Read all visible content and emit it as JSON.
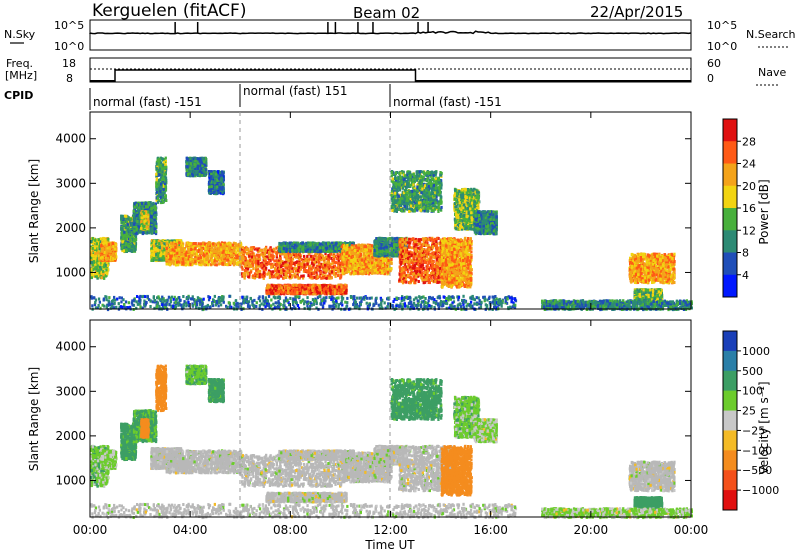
{
  "header": {
    "station": "Kerguelen (fitACF)",
    "beam": "Beam 02",
    "date": "22/Apr/2015"
  },
  "noise_panel": {
    "left_label": "N.Sky",
    "right_label": "N.Search",
    "left_ticks": [
      "10^5",
      "10^0"
    ],
    "right_ticks": [
      "10^5",
      "10^0"
    ]
  },
  "freq_panel": {
    "left_label_1": "Freq.",
    "left_label_2": "[MHz]",
    "right_label": "Nave",
    "left_ticks": [
      "18",
      "8"
    ],
    "right_ticks": [
      "60",
      "0"
    ],
    "freq_steps": [
      {
        "start_hr": 0.0,
        "end_hr": 1.0,
        "value_mhz": 8.5
      },
      {
        "start_hr": 1.0,
        "end_hr": 13.0,
        "value_mhz": 13.0
      },
      {
        "start_hr": 13.0,
        "end_hr": 24.0,
        "value_mhz": 8.5
      }
    ],
    "nave_level": 30
  },
  "cpid": {
    "label": "CPID",
    "segments": [
      {
        "start_hr": 0,
        "text": "normal (fast) -151"
      },
      {
        "start_hr": 6,
        "text": "normal (fast) 151"
      },
      {
        "start_hr": 12,
        "text": "normal (fast) -151"
      }
    ]
  },
  "power_panel": {
    "ylabel": "Slant Range [km]",
    "yticks": [
      "4000",
      "3000",
      "2000",
      "1000"
    ],
    "colorbar_label": "Power [dB]",
    "colorbar_ticks": [
      "28",
      "24",
      "20",
      "16",
      "12",
      "8",
      "4"
    ],
    "colors": [
      "#0018ff",
      "#1f4eb8",
      "#2c8a74",
      "#48b03c",
      "#f2d411",
      "#f4a31a",
      "#ff5a16",
      "#e01010"
    ]
  },
  "velocity_panel": {
    "ylabel": "Slant Range [km]",
    "yticks": [
      "4000",
      "3000",
      "2000",
      "1000"
    ],
    "colorbar_label": "Velocity [m s⁻¹]",
    "colorbar_ticks": [
      "1000",
      "500",
      "100",
      "25",
      "−25",
      "−100",
      "−500",
      "−1000"
    ],
    "colors": [
      "#1a3fb8",
      "#2a7fa8",
      "#3c9e64",
      "#6ccc2c",
      "#c8c8c8",
      "#f4bb26",
      "#f48c1e",
      "#f4501a",
      "#e00f0f"
    ],
    "ground_scatter": "#b8b8b8"
  },
  "x_axis": {
    "label": "Time UT",
    "ticks": [
      "00:00",
      "04:00",
      "08:00",
      "12:00",
      "16:00",
      "20:00",
      "00:00"
    ]
  },
  "chart_data": {
    "type": "heatmap",
    "title": "Kerguelen (fitACF)  Beam 02  22/Apr/2015",
    "xlabel": "Time UT",
    "ylabel": "Slant Range [km]",
    "xlim_hours": [
      0,
      24
    ],
    "ylim_km": [
      180,
      4600
    ],
    "power_range_db": [
      0,
      30
    ],
    "velocity_range_ms": [
      -1000,
      1000
    ],
    "regions": [
      {
        "t0": 0.0,
        "t1": 0.7,
        "r0": 900,
        "r1": 1800,
        "power_db": 16,
        "velocity": 60
      },
      {
        "t0": 0.4,
        "t1": 1.0,
        "r0": 1300,
        "r1": 1700,
        "power_db": 22,
        "velocity": 40
      },
      {
        "t0": 1.2,
        "t1": 1.8,
        "r0": 1500,
        "r1": 2300,
        "power_db": 12,
        "velocity": 150
      },
      {
        "t0": 1.7,
        "t1": 2.6,
        "r0": 1900,
        "r1": 2600,
        "power_db": 10,
        "velocity": 120
      },
      {
        "t0": 2.6,
        "t1": 3.0,
        "r0": 2600,
        "r1": 3600,
        "power_db": 12,
        "velocity": -300
      },
      {
        "t0": 2.0,
        "t1": 2.3,
        "r0": 2000,
        "r1": 2400,
        "power_db": 18,
        "velocity": -250
      },
      {
        "t0": 3.8,
        "t1": 4.6,
        "r0": 3200,
        "r1": 3600,
        "power_db": 10,
        "velocity": 80
      },
      {
        "t0": 4.7,
        "t1": 5.3,
        "r0": 2800,
        "r1": 3300,
        "power_db": 8,
        "velocity": 150
      },
      {
        "t0": 2.4,
        "t1": 3.6,
        "r0": 1300,
        "r1": 1750,
        "power_db": 16,
        "velocity": 0
      },
      {
        "t0": 3.0,
        "t1": 6.0,
        "r0": 1200,
        "r1": 1700,
        "power_db": 22,
        "velocity": 0
      },
      {
        "t0": 6.0,
        "t1": 10.0,
        "r0": 900,
        "r1": 1600,
        "power_db": 25,
        "velocity": 0
      },
      {
        "t0": 7.5,
        "t1": 10.5,
        "r0": 1500,
        "r1": 1700,
        "power_db": 10,
        "velocity": 0
      },
      {
        "t0": 10.0,
        "t1": 12.0,
        "r0": 1000,
        "r1": 1650,
        "power_db": 22,
        "velocity": 0
      },
      {
        "t0": 11.3,
        "t1": 12.6,
        "r0": 1400,
        "r1": 1800,
        "power_db": 10,
        "velocity": 0
      },
      {
        "t0": 7.0,
        "t1": 10.2,
        "r0": 550,
        "r1": 750,
        "power_db": 26,
        "velocity": 0
      },
      {
        "t0": 12.3,
        "t1": 14.5,
        "r0": 800,
        "r1": 1800,
        "power_db": 26,
        "velocity": 0
      },
      {
        "t0": 14.0,
        "t1": 15.2,
        "r0": 700,
        "r1": 1800,
        "power_db": 22,
        "velocity": -250
      },
      {
        "t0": 14.5,
        "t1": 15.5,
        "r0": 2000,
        "r1": 2900,
        "power_db": 14,
        "velocity": 60
      },
      {
        "t0": 15.3,
        "t1": 16.2,
        "r0": 1900,
        "r1": 2400,
        "power_db": 10,
        "velocity": 30
      },
      {
        "t0": 12.0,
        "t1": 14.0,
        "r0": 2400,
        "r1": 3300,
        "power_db": 12,
        "velocity": 150
      },
      {
        "t0": 21.5,
        "t1": 23.3,
        "r0": 800,
        "r1": 1450,
        "power_db": 22,
        "velocity": 0
      },
      {
        "t0": 21.7,
        "t1": 22.8,
        "r0": 400,
        "r1": 650,
        "power_db": 14,
        "velocity": 180
      },
      {
        "t0": 18.0,
        "t1": 24.0,
        "r0": 200,
        "r1": 400,
        "power_db": 10,
        "velocity": 30
      },
      {
        "t0": 0.0,
        "t1": 17.0,
        "r0": 200,
        "r1": 500,
        "power_db": 8,
        "velocity": 20
      }
    ]
  }
}
